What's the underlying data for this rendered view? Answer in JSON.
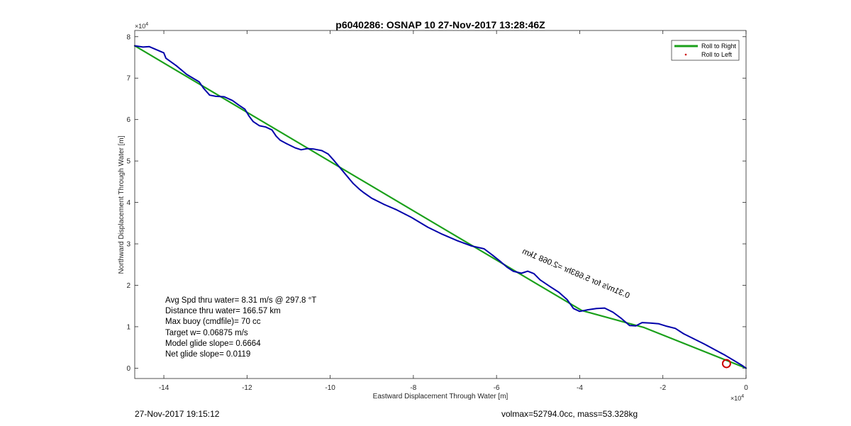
{
  "chart_data": {
    "type": "line",
    "title": "p6040286: OSNAP 10 27-Nov-2017 13:28:46Z",
    "xlabel": "Eastward Displacement Through Water [m]",
    "ylabel": "Northward Displacement Through Water [m]",
    "x_exponent": "×10",
    "x_exponent_power": "4",
    "y_exponent": "×10",
    "y_exponent_power": "4",
    "xlim": [
      -147000,
      0
    ],
    "ylim": [
      -2500,
      81500
    ],
    "xticks": [
      -140000,
      -120000,
      -100000,
      -80000,
      -60000,
      -40000,
      -20000,
      0
    ],
    "xtick_labels": [
      "-14",
      "-12",
      "-10",
      "-8",
      "-6",
      "-4",
      "-2",
      "0"
    ],
    "yticks": [
      0,
      10000,
      20000,
      30000,
      40000,
      50000,
      60000,
      70000,
      80000
    ],
    "ytick_labels": [
      "0",
      "1",
      "2",
      "3",
      "4",
      "5",
      "6",
      "7",
      "8"
    ],
    "grid": false,
    "legend_position": "top-right",
    "series": [
      {
        "name": "Roll to Right",
        "color": "#1aa01a",
        "style": "line",
        "x": [
          -147000,
          -39500,
          -24500,
          0
        ],
        "y": [
          77800,
          13900,
          9800,
          0
        ]
      },
      {
        "name": "Roll to Left",
        "color": "#cc0000",
        "style": "point",
        "x": [],
        "y": []
      },
      {
        "color": "#0000aa",
        "style": "line",
        "x": [
          -147000,
          -145000,
          -143500,
          -140000,
          -139500,
          -137000,
          -134500,
          -131500,
          -130500,
          -129000,
          -127500,
          -125500,
          -123500,
          -122000,
          -120500,
          -119500,
          -118500,
          -117000,
          -115500,
          -114000,
          -113000,
          -112000,
          -110500,
          -108500,
          -107000,
          -105500,
          -104000,
          -102000,
          -100500,
          -99000,
          -97500,
          -96000,
          -94500,
          -93000,
          -92000,
          -90000,
          -87000,
          -84000,
          -80500,
          -76500,
          -73000,
          -69500,
          -66000,
          -63000,
          -61000,
          -59000,
          -57500,
          -56000,
          -54000,
          -52500,
          -51000,
          -49500,
          -47000,
          -45000,
          -43000,
          -41500,
          -40000,
          -38000,
          -36000,
          -34000,
          -32000,
          -30000,
          -28000,
          -26500,
          -25000,
          -23000,
          -21000,
          -19000,
          -17000,
          -15000,
          -10000,
          -5000,
          -1000,
          0
        ],
        "y": [
          77800,
          77500,
          77600,
          76100,
          74800,
          73000,
          70900,
          69100,
          67600,
          65900,
          65600,
          65500,
          64600,
          63500,
          62500,
          60800,
          59500,
          58500,
          58200,
          57500,
          56000,
          55000,
          54200,
          53200,
          52700,
          53000,
          52900,
          52500,
          51700,
          50000,
          48200,
          46400,
          44600,
          43200,
          42400,
          41000,
          39500,
          38200,
          36400,
          34000,
          32300,
          30800,
          29500,
          28800,
          27300,
          25700,
          24400,
          23400,
          22900,
          23400,
          22800,
          21300,
          19600,
          18300,
          16500,
          14400,
          13700,
          14100,
          14400,
          14500,
          13500,
          12000,
          10300,
          10200,
          11000,
          10900,
          10700,
          10100,
          9600,
          8300,
          5800,
          3100,
          700,
          0
        ]
      }
    ],
    "markers": [
      {
        "type": "circle",
        "color": "#cc0000",
        "x": -4700,
        "y": 1100
      }
    ],
    "annotations": {
      "stats": [
        "Avg Spd thru water=  8.31 m/s @ 297.8 °T",
        "Distance thru water= 166.57 km",
        "Max buoy (cmdfile)= 70 cc",
        "Target w= 0.06875 m/s",
        "Model glide slope= 0.6664",
        "Net glide slope= 0.0119"
      ],
      "rotated_label": "0.31m/s for 5.683hr =2.068 1km"
    }
  },
  "footer": {
    "left": "27-Nov-2017 19:15:12",
    "right": "volmax=52794.0cc, mass=53.328kg"
  }
}
